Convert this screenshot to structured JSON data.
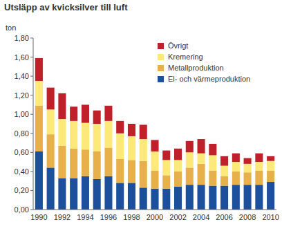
{
  "chart_data": {
    "type": "bar",
    "stacked": true,
    "title": "Utsläpp av kvicksilver till luft",
    "y_label": "ton",
    "categories": [
      "1990",
      null,
      "1992",
      null,
      "1994",
      null,
      "1996",
      null,
      "1998",
      null,
      "2000",
      null,
      "2002",
      null,
      "2004",
      null,
      "2006",
      null,
      "2008",
      null,
      "2010"
    ],
    "series": [
      {
        "name": "El- och värmeproduktion",
        "color": "#1c4f9c",
        "values": [
          0.61,
          0.44,
          0.33,
          0.33,
          0.35,
          0.32,
          0.35,
          0.28,
          0.28,
          0.23,
          0.22,
          0.22,
          0.24,
          0.26,
          0.26,
          0.25,
          0.25,
          0.26,
          0.26,
          0.26,
          0.29
        ]
      },
      {
        "name": "Metallproduktion",
        "color": "#e8b04a",
        "values": [
          0.48,
          0.35,
          0.34,
          0.31,
          0.28,
          0.29,
          0.3,
          0.25,
          0.24,
          0.28,
          0.19,
          0.14,
          0.16,
          0.18,
          0.22,
          0.16,
          0.1,
          0.14,
          0.13,
          0.15,
          0.12
        ]
      },
      {
        "name": "Kremering",
        "color": "#fde97a",
        "values": [
          0.26,
          0.26,
          0.28,
          0.29,
          0.28,
          0.29,
          0.28,
          0.27,
          0.25,
          0.23,
          0.2,
          0.16,
          0.12,
          0.16,
          0.11,
          0.16,
          0.11,
          0.1,
          0.09,
          0.09,
          0.1
        ]
      },
      {
        "name": "Övrigt",
        "color": "#c0202a",
        "values": [
          0.24,
          0.23,
          0.27,
          0.15,
          0.19,
          0.14,
          0.16,
          0.13,
          0.13,
          0.15,
          0.12,
          0.1,
          0.12,
          0.12,
          0.15,
          0.12,
          0.1,
          0.09,
          0.06,
          0.09,
          0.05
        ]
      }
    ],
    "ylim": [
      0,
      1.8
    ],
    "yticks": [
      {
        "value": 0,
        "label": "0,00"
      },
      {
        "value": 0.2,
        "label": "0,20"
      },
      {
        "value": 0.4,
        "label": "0,40"
      },
      {
        "value": 0.6,
        "label": "0,60"
      },
      {
        "value": 0.8,
        "label": "0,80"
      },
      {
        "value": 1.0,
        "label": "1,00"
      },
      {
        "value": 1.2,
        "label": "1,20"
      },
      {
        "value": 1.4,
        "label": "1,40"
      },
      {
        "value": 1.6,
        "label": "1,60"
      },
      {
        "value": 1.8,
        "label": "1,80"
      }
    ],
    "grid": false,
    "legend": "upper right"
  }
}
